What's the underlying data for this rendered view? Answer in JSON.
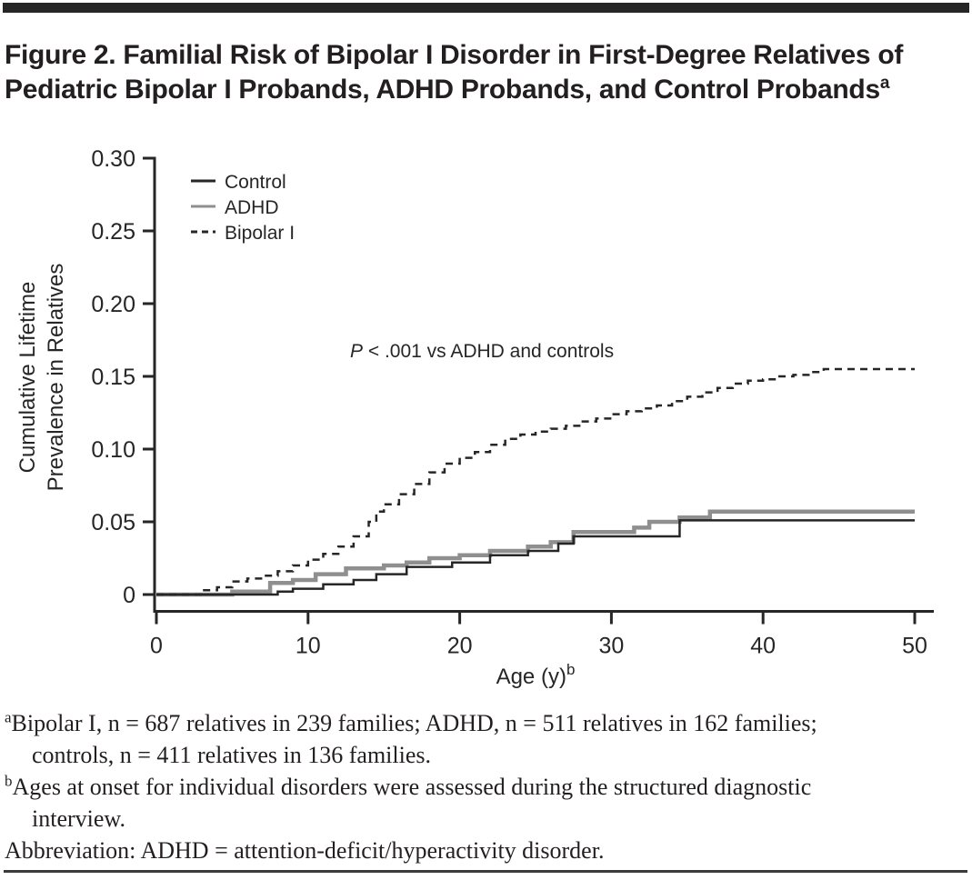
{
  "header": {
    "title": "Figure 2. Familial Risk of Bipolar I Disorder in First-Degree Relatives of Pediatric Bipolar I Probands, ADHD Probands, and Control Probands",
    "title_sup": "a"
  },
  "colors": {
    "ink": "#231f20",
    "axis": "#262626",
    "gray_line": "#8f8f8f"
  },
  "chart_data": {
    "type": "line",
    "subtype": "step",
    "title": "",
    "xlabel": "Age (y)",
    "xlabel_sup": "b",
    "ylabel_lines": [
      "Cumulative Lifetime",
      "Prevalence in Relatives"
    ],
    "xlim": [
      0,
      50
    ],
    "ylim": [
      0,
      0.3
    ],
    "xticks": [
      0,
      10,
      20,
      30,
      40,
      50
    ],
    "xtick_labels": [
      "0",
      "10",
      "20",
      "30",
      "40",
      "50"
    ],
    "yticks": [
      0,
      0.05,
      0.1,
      0.15,
      0.2,
      0.25,
      0.3
    ],
    "ytick_labels": [
      "0",
      "0.05",
      "0.10",
      "0.15",
      "0.20",
      "0.25",
      "0.30"
    ],
    "grid": false,
    "legend_position": "top-left-inside",
    "annotation": {
      "italic": "P",
      "text": " < .001 vs ADHD and controls"
    },
    "series": [
      {
        "name": "Control",
        "color": "#262626",
        "dash": "solid",
        "width": 2.5,
        "x": [
          0,
          8,
          9,
          11,
          13,
          14.5,
          16.5,
          19.5,
          22,
          24.5,
          26.5,
          27.5,
          34.5,
          50
        ],
        "y": [
          0,
          0.002,
          0.004,
          0.007,
          0.01,
          0.014,
          0.019,
          0.022,
          0.027,
          0.03,
          0.035,
          0.04,
          0.051,
          0.051
        ]
      },
      {
        "name": "ADHD",
        "color": "#8f8f8f",
        "dash": "solid",
        "width": 4.5,
        "x": [
          0,
          5,
          7.5,
          9,
          10.5,
          12.5,
          15,
          16.5,
          18,
          20,
          22,
          24.5,
          26,
          27.5,
          31.5,
          32.5,
          34.5,
          36.5,
          50
        ],
        "y": [
          0,
          0.002,
          0.008,
          0.01,
          0.014,
          0.018,
          0.02,
          0.022,
          0.025,
          0.027,
          0.03,
          0.033,
          0.036,
          0.043,
          0.046,
          0.05,
          0.053,
          0.057,
          0.057
        ]
      },
      {
        "name": "Bipolar I",
        "color": "#262626",
        "dash": "dashed",
        "width": 2.5,
        "x": [
          0,
          3,
          4,
          5,
          6,
          7,
          8,
          9,
          10,
          11,
          12,
          13,
          14,
          14.5,
          15,
          16,
          17,
          18,
          19,
          20,
          21,
          22,
          23,
          24,
          25,
          26,
          27,
          28,
          29,
          30,
          31,
          32,
          33,
          34,
          35,
          36,
          37,
          38,
          39,
          40,
          41,
          42,
          43,
          44,
          50
        ],
        "y": [
          0,
          0.003,
          0.005,
          0.009,
          0.011,
          0.013,
          0.016,
          0.02,
          0.024,
          0.028,
          0.033,
          0.04,
          0.05,
          0.057,
          0.062,
          0.069,
          0.076,
          0.084,
          0.09,
          0.094,
          0.098,
          0.103,
          0.107,
          0.11,
          0.112,
          0.114,
          0.116,
          0.119,
          0.121,
          0.124,
          0.126,
          0.128,
          0.13,
          0.133,
          0.136,
          0.139,
          0.142,
          0.145,
          0.147,
          0.148,
          0.15,
          0.151,
          0.153,
          0.155,
          0.155
        ]
      }
    ]
  },
  "footnotes": [
    {
      "marker": "a",
      "text": "Bipolar I, n = 687 relatives in 239 families; ADHD, n = 511 relatives in 162 families; controls, n = 411 relatives in 136 families."
    },
    {
      "marker": "b",
      "text": "Ages at onset for individual disorders were assessed during the structured diagnostic interview."
    },
    {
      "marker": "",
      "text": "Abbreviation: ADHD = attention-deficit/hyperactivity disorder."
    }
  ]
}
